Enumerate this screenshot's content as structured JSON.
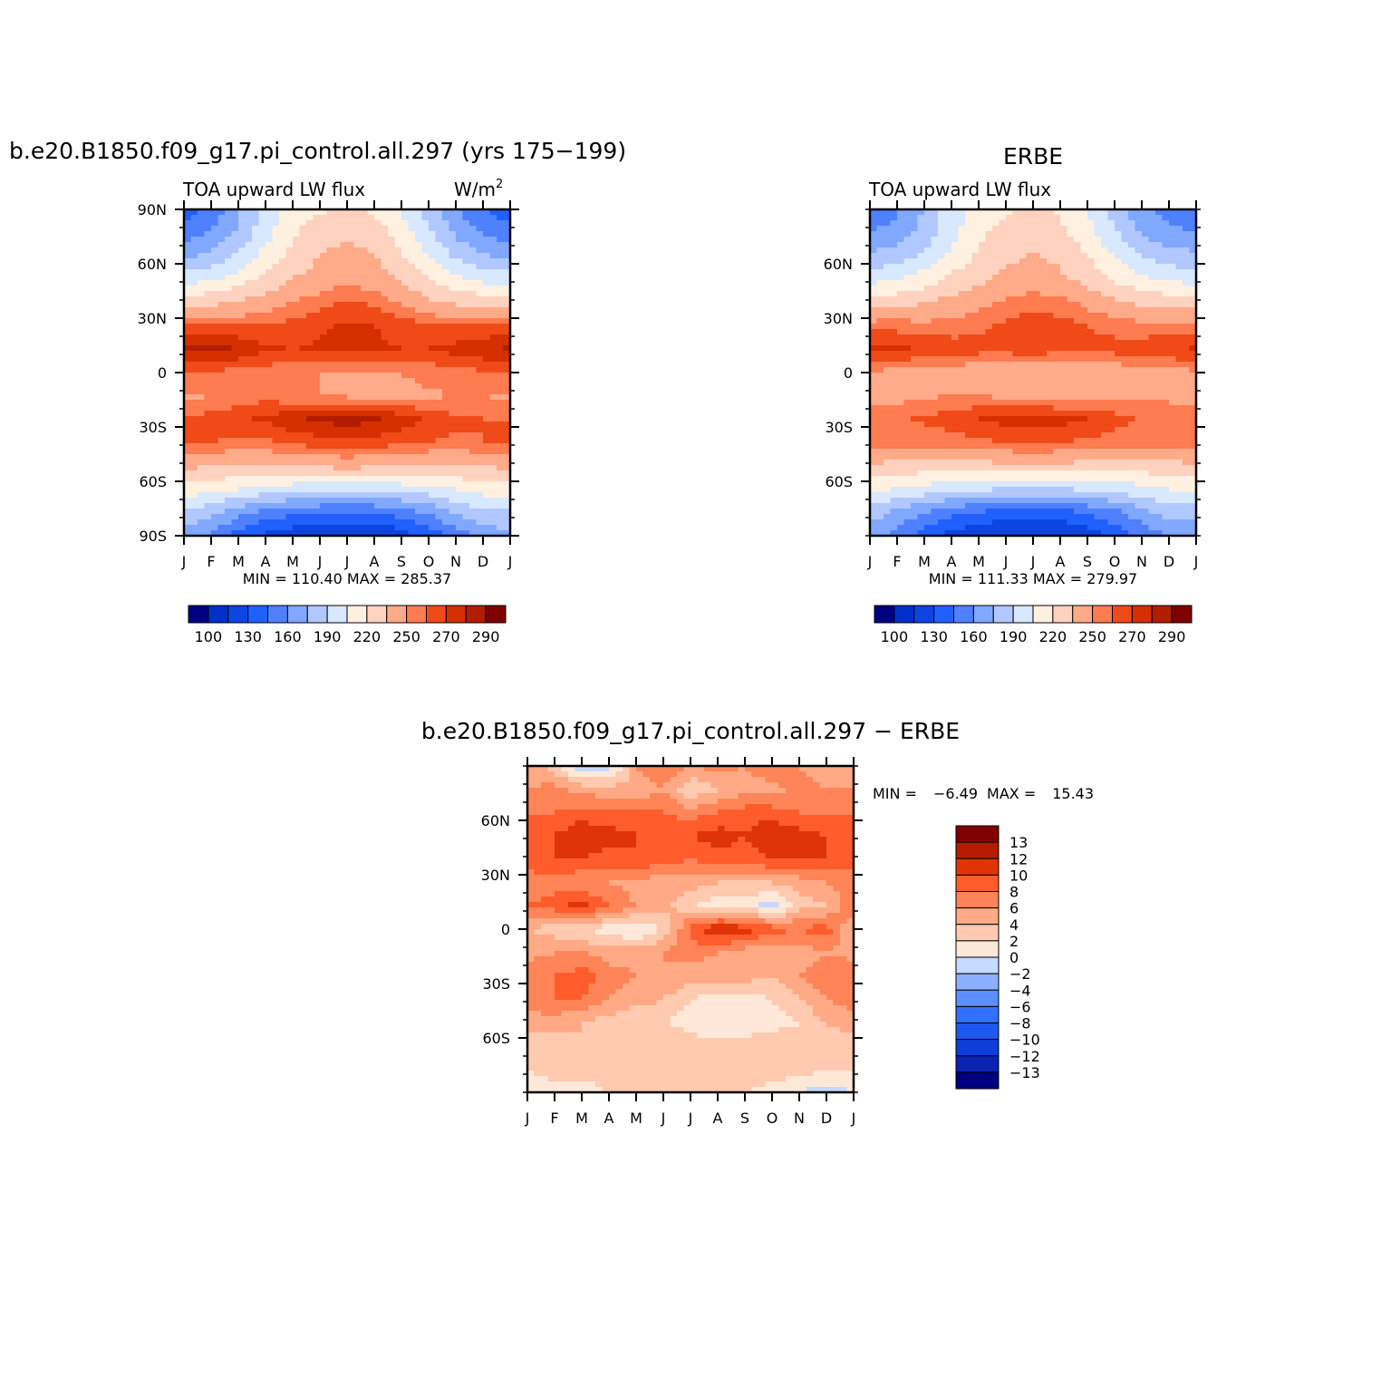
{
  "figure": {
    "panel_a_title": "b.e20.B1850.f09_g17.pi_control.all.297 (yrs 175−199)",
    "panel_a_left_string": "TOA upward LW flux",
    "panel_a_units": "W/m",
    "panel_a_units_sup": "2",
    "panel_b_title": "ERBE",
    "panel_b_left_string": "TOA upward LW flux",
    "panel_c_title": "b.e20.B1850.f09_g17.pi_control.all.297 − ERBE"
  },
  "chart_data": [
    {
      "id": "model",
      "type": "heatmap",
      "title": "b.e20.B1850.f09_g17.pi_control.all.297 (yrs 175−199)",
      "subtitle": "TOA upward LW flux",
      "units": "W/m2",
      "x_ticks": [
        "J",
        "F",
        "M",
        "A",
        "M",
        "J",
        "J",
        "A",
        "S",
        "O",
        "N",
        "D",
        "J"
      ],
      "y_ticks": [
        "90N",
        "60N",
        "30N",
        "0",
        "30S",
        "60S",
        "90S"
      ],
      "y_range": [
        -90,
        90
      ],
      "stats": "MIN = 110.40 MAX = 285.37",
      "min": 110.4,
      "max": 285.37,
      "colorbar_labels": [
        "100",
        "130",
        "160",
        "190",
        "220",
        "250",
        "270",
        "290"
      ],
      "colorbar_levels": [
        100,
        115,
        130,
        145,
        160,
        175,
        190,
        205,
        220,
        235,
        250,
        260,
        270,
        280,
        290
      ],
      "colors": [
        "#000080",
        "#0030c8",
        "#0d45e0",
        "#2060ff",
        "#4f80ff",
        "#80a8ff",
        "#b0c8ff",
        "#d8e8ff",
        "#fff0e0",
        "#ffd2c0",
        "#ffaa88",
        "#ff7b50",
        "#f04a18",
        "#d43000",
        "#b41c00",
        "#800000"
      ],
      "matrix_note": "rows 90N->90S every 15 deg; cols Jan..Dec,Jan",
      "matrix": [
        [
          135,
          150,
          172,
          195,
          212,
          218,
          220,
          218,
          205,
          185,
          162,
          145,
          135
        ],
        [
          152,
          162,
          178,
          200,
          218,
          228,
          232,
          228,
          212,
          192,
          172,
          158,
          152
        ],
        [
          172,
          180,
          192,
          210,
          225,
          235,
          240,
          236,
          222,
          204,
          188,
          176,
          172
        ],
        [
          198,
          202,
          212,
          225,
          235,
          242,
          246,
          242,
          232,
          220,
          208,
          200,
          198
        ],
        [
          230,
          232,
          236,
          242,
          250,
          256,
          262,
          258,
          248,
          238,
          232,
          230,
          230
        ],
        [
          262,
          262,
          260,
          260,
          264,
          268,
          272,
          270,
          266,
          262,
          260,
          261,
          262
        ],
        [
          282,
          284,
          280,
          272,
          270,
          272,
          274,
          272,
          270,
          270,
          274,
          278,
          282
        ],
        [
          260,
          258,
          256,
          254,
          252,
          250,
          248,
          248,
          250,
          254,
          256,
          258,
          260
        ],
        [
          248,
          250,
          254,
          256,
          252,
          250,
          248,
          246,
          246,
          248,
          250,
          250,
          248
        ],
        [
          260,
          264,
          268,
          272,
          278,
          282,
          285,
          282,
          276,
          268,
          262,
          260,
          260
        ],
        [
          262,
          260,
          258,
          258,
          262,
          266,
          268,
          266,
          262,
          260,
          258,
          260,
          262
        ],
        [
          238,
          236,
          234,
          234,
          236,
          238,
          240,
          238,
          236,
          234,
          234,
          236,
          238
        ],
        [
          214,
          210,
          206,
          200,
          196,
          194,
          192,
          194,
          196,
          200,
          206,
          212,
          214
        ],
        [
          188,
          178,
          166,
          156,
          150,
          146,
          144,
          146,
          152,
          162,
          176,
          186,
          188
        ],
        [
          170,
          156,
          140,
          126,
          118,
          114,
          112,
          114,
          122,
          136,
          152,
          166,
          170
        ]
      ]
    },
    {
      "id": "obs",
      "type": "heatmap",
      "title": "ERBE",
      "subtitle": "TOA upward LW flux",
      "x_ticks": [
        "J",
        "F",
        "M",
        "A",
        "M",
        "J",
        "J",
        "A",
        "S",
        "O",
        "N",
        "D",
        "J"
      ],
      "y_ticks": [
        "60N",
        "30N",
        "0",
        "30S",
        "60S"
      ],
      "y_range": [
        -90,
        90
      ],
      "stats": "MIN = 111.33 MAX = 279.97",
      "min": 111.33,
      "max": 279.97,
      "colorbar_labels": [
        "100",
        "130",
        "160",
        "190",
        "220",
        "250",
        "270",
        "290"
      ],
      "colorbar_levels": [
        100,
        115,
        130,
        145,
        160,
        175,
        190,
        205,
        220,
        235,
        250,
        260,
        270,
        280,
        290
      ],
      "colors": [
        "#000080",
        "#0030c8",
        "#0d45e0",
        "#2060ff",
        "#4f80ff",
        "#80a8ff",
        "#b0c8ff",
        "#d8e8ff",
        "#fff0e0",
        "#ffd2c0",
        "#ffaa88",
        "#ff7b50",
        "#f04a18",
        "#d43000",
        "#b41c00",
        "#800000"
      ],
      "matrix": [
        [
          148,
          158,
          176,
          198,
          212,
          218,
          222,
          218,
          204,
          184,
          164,
          152,
          148
        ],
        [
          160,
          166,
          180,
          200,
          216,
          226,
          228,
          224,
          210,
          192,
          174,
          164,
          160
        ],
        [
          178,
          184,
          194,
          208,
          222,
          232,
          236,
          232,
          220,
          204,
          190,
          182,
          178
        ],
        [
          200,
          204,
          212,
          224,
          232,
          238,
          242,
          238,
          230,
          218,
          208,
          202,
          200
        ],
        [
          228,
          230,
          234,
          240,
          246,
          252,
          256,
          254,
          246,
          238,
          232,
          230,
          228
        ],
        [
          256,
          256,
          254,
          254,
          258,
          262,
          266,
          264,
          260,
          256,
          254,
          255,
          256
        ],
        [
          272,
          272,
          270,
          266,
          264,
          264,
          266,
          264,
          264,
          264,
          266,
          268,
          272
        ],
        [
          248,
          246,
          244,
          242,
          242,
          240,
          238,
          238,
          240,
          242,
          244,
          246,
          248
        ],
        [
          244,
          246,
          248,
          250,
          250,
          248,
          246,
          244,
          244,
          246,
          248,
          248,
          244
        ],
        [
          256,
          258,
          262,
          266,
          270,
          274,
          276,
          274,
          270,
          264,
          258,
          256,
          256
        ],
        [
          258,
          256,
          254,
          254,
          258,
          260,
          262,
          260,
          258,
          256,
          256,
          258,
          258
        ],
        [
          232,
          230,
          228,
          228,
          230,
          232,
          234,
          232,
          230,
          228,
          228,
          230,
          232
        ],
        [
          208,
          204,
          200,
          196,
          192,
          190,
          188,
          190,
          192,
          196,
          200,
          206,
          208
        ],
        [
          182,
          172,
          160,
          150,
          144,
          140,
          138,
          140,
          146,
          156,
          170,
          180,
          182
        ],
        [
          166,
          154,
          138,
          124,
          116,
          112,
          112,
          114,
          120,
          134,
          150,
          162,
          166
        ]
      ]
    },
    {
      "id": "diff",
      "type": "heatmap",
      "title": "b.e20.B1850.f09_g17.pi_control.all.297 − ERBE",
      "x_ticks": [
        "J",
        "F",
        "M",
        "A",
        "M",
        "J",
        "J",
        "A",
        "S",
        "O",
        "N",
        "D",
        "J"
      ],
      "y_ticks": [
        "60N",
        "30N",
        "0",
        "30S",
        "60S"
      ],
      "y_range": [
        -90,
        90
      ],
      "stats_min_label": "MIN =",
      "stats_min_value": "−6.49",
      "stats_max_label": "MAX =",
      "stats_max_value": "15.43",
      "min": -6.49,
      "max": 15.43,
      "colorbar_labels": [
        "13",
        "12",
        "10",
        "8",
        "6",
        "4",
        "2",
        "0",
        "−2",
        "−4",
        "−6",
        "−8",
        "−10",
        "−12",
        "−13"
      ],
      "colorbar_levels": [
        -13,
        -12,
        -10,
        -8,
        -6,
        -4,
        -2,
        0,
        2,
        4,
        6,
        8,
        10,
        12,
        13
      ],
      "colors": [
        "#000080",
        "#0a23b4",
        "#0d3ed8",
        "#1e58f0",
        "#3470ff",
        "#5c90ff",
        "#8cb0ff",
        "#c6daff",
        "#ffe8d8",
        "#ffcab0",
        "#ffaa84",
        "#ff8458",
        "#ff5c2c",
        "#e03408",
        "#b41c00",
        "#800000"
      ],
      "matrix": [
        [
          5,
          3,
          -2,
          -1,
          6,
          8,
          6,
          7,
          6,
          8,
          6,
          5,
          5
        ],
        [
          6,
          7,
          5,
          5,
          4,
          6,
          2,
          4,
          5,
          5,
          7,
          6,
          6
        ],
        [
          8,
          8,
          9,
          8,
          9,
          8,
          7,
          8,
          9,
          9,
          8,
          8,
          8
        ],
        [
          9,
          10,
          12,
          11,
          10,
          10,
          10,
          11,
          10,
          12,
          11,
          10,
          9
        ],
        [
          9,
          10,
          10,
          9,
          10,
          9,
          8,
          9,
          9,
          10,
          10,
          10,
          9
        ],
        [
          7,
          7,
          6,
          6,
          5,
          5,
          5,
          4,
          4,
          4,
          5,
          6,
          7
        ],
        [
          8,
          9,
          11,
          8,
          6,
          5,
          2,
          1,
          1,
          -1,
          3,
          4,
          8
        ],
        [
          4,
          3,
          2,
          1,
          0,
          2,
          9,
          12,
          11,
          9,
          8,
          9,
          4
        ],
        [
          5,
          6,
          6,
          5,
          5,
          6,
          7,
          6,
          5,
          4,
          5,
          6,
          5
        ],
        [
          8,
          8,
          9,
          7,
          6,
          6,
          5,
          5,
          5,
          4,
          6,
          7,
          8
        ],
        [
          7,
          8,
          8,
          6,
          5,
          4,
          2,
          1,
          1,
          2,
          4,
          6,
          7
        ],
        [
          5,
          5,
          4,
          3,
          2,
          2,
          1,
          0,
          0,
          1,
          2,
          4,
          5
        ],
        [
          3,
          3,
          4,
          3,
          3,
          4,
          3,
          3,
          3,
          4,
          3,
          3,
          3
        ],
        [
          2,
          3,
          3,
          3,
          4,
          4,
          3,
          3,
          4,
          3,
          3,
          2,
          2
        ],
        [
          0,
          1,
          1,
          2,
          2,
          2,
          2,
          2,
          2,
          1,
          0,
          -1,
          0
        ]
      ]
    }
  ]
}
